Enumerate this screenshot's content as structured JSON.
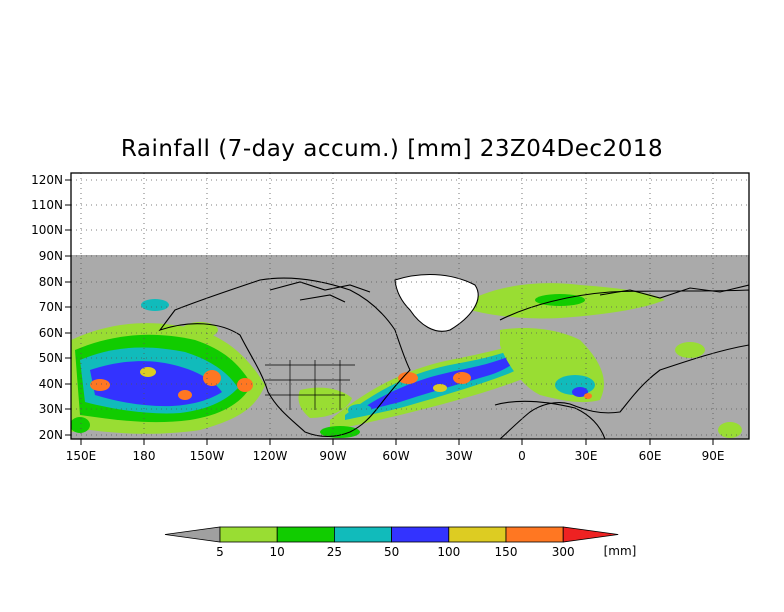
{
  "map": {
    "title": "Rainfall (7-day accum.) [mm] 23Z04Dec2018",
    "lat_labels": [
      "120N",
      "110N",
      "100N",
      "90N",
      "80N",
      "70N",
      "60N",
      "50N",
      "40N",
      "30N",
      "20N"
    ],
    "lon_labels": [
      "150E",
      "180",
      "150W",
      "120W",
      "90W",
      "60W",
      "30W",
      "0",
      "30E",
      "60E",
      "90E"
    ],
    "lat_range": [
      18,
      123
    ],
    "lon_range": [
      145,
      465
    ],
    "no_data_color": "#aaaaaa",
    "coastline_color": "#000000"
  },
  "colorbar": {
    "unit": "[mm]",
    "labels": [
      "5",
      "10",
      "25",
      "50",
      "100",
      "150",
      "300"
    ],
    "colors": [
      "#a0a0a0",
      "#99dd33",
      "#11cc00",
      "#11bbbb",
      "#3333ff",
      "#ddcc22",
      "#ff7722",
      "#ee2222"
    ]
  }
}
